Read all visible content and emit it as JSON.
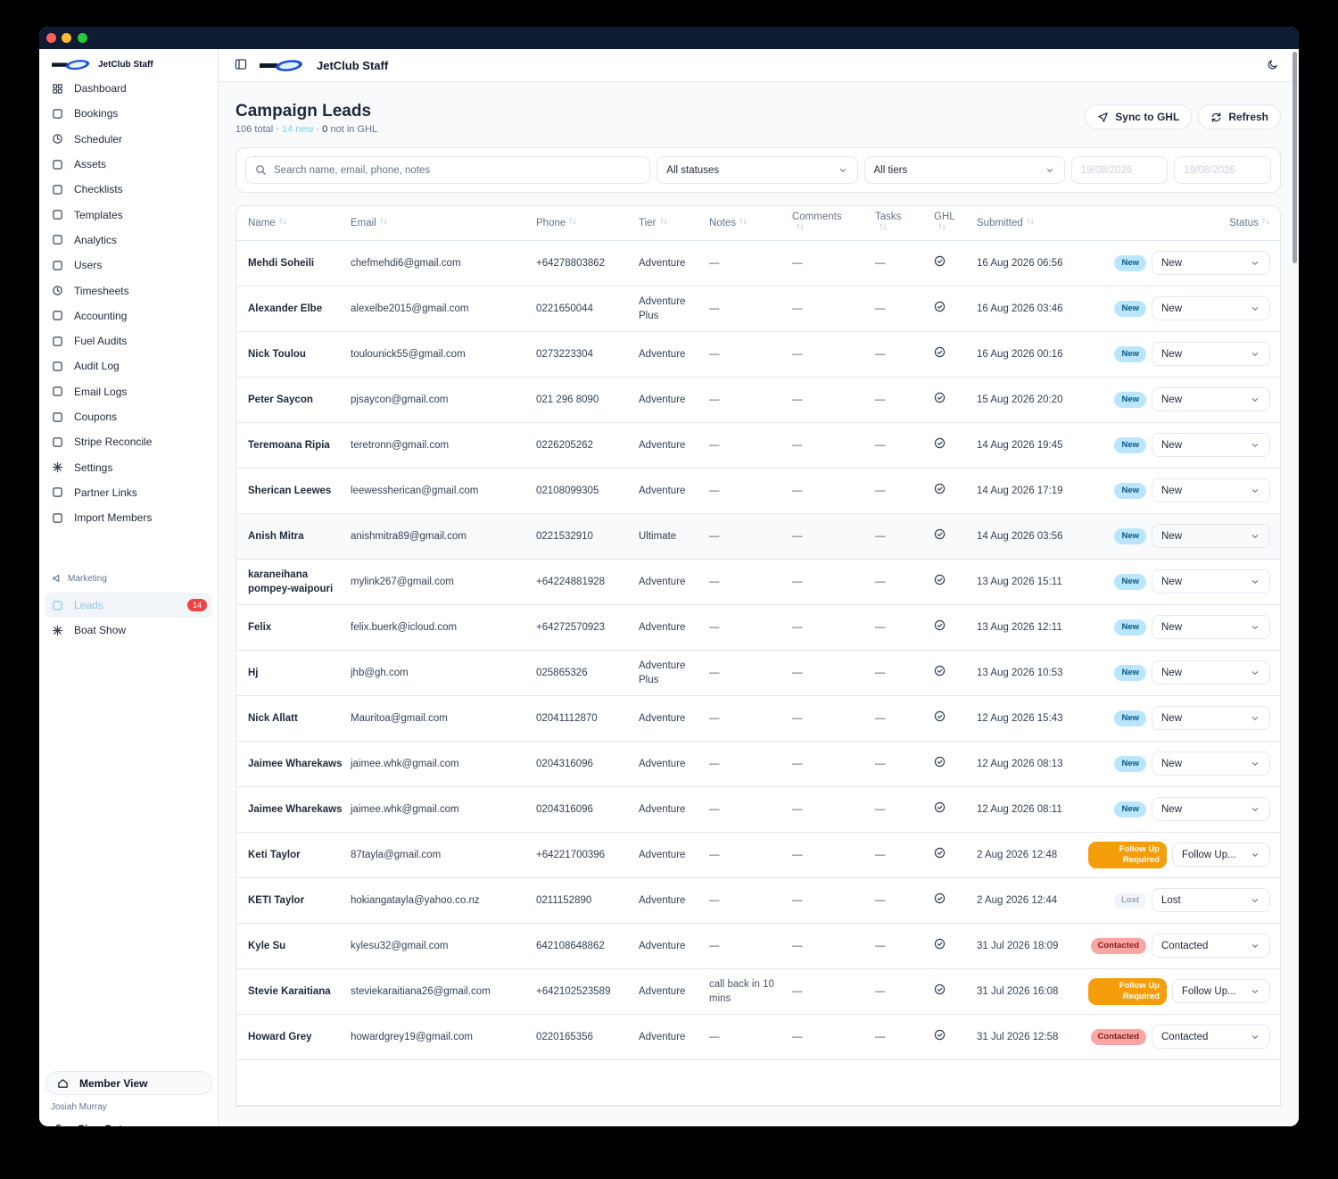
{
  "sidebar": {
    "brand": "JetClub Staff",
    "nav": [
      "Dashboard",
      "Bookings",
      "Scheduler",
      "Assets",
      "Checklists",
      "Templates",
      "Analytics",
      "Users",
      "Timesheets",
      "Accounting",
      "Fuel Audits",
      "Audit Log",
      "Email Logs",
      "Coupons",
      "Stripe Reconcile",
      "Settings",
      "Partner Links",
      "Import Members"
    ],
    "section": "Marketing",
    "marketing": [
      {
        "label": "Leads",
        "badge": "14",
        "active": true
      },
      {
        "label": "Boat Show"
      }
    ],
    "member_view": "Member View",
    "user": "Josiah Murray",
    "sign_out": "Sign Out"
  },
  "topbar": {
    "brand": "JetClub Staff"
  },
  "header": {
    "title": "Campaign Leads",
    "total": "106 total",
    "separator": "·",
    "new": "14 new",
    "ghl_count": "0",
    "ghl_text": "not in GHL",
    "buttons": [
      "Sync to GHL",
      "Refresh"
    ]
  },
  "filters": {
    "search": "Search name, email, phone, notes",
    "status": "All statuses",
    "tier": "All tiers",
    "date_from": "19/08/2026",
    "date_to": "19/08/2026"
  },
  "table": {
    "columns": [
      "Name",
      "Email",
      "Phone",
      "Tier",
      "Notes",
      "Comments",
      "Tasks",
      "GHL",
      "Submitted",
      "Status"
    ],
    "rows": [
      {
        "name": "Mehdi Soheili",
        "email": "chefmehdi6@gmail.com",
        "phone": "+64278803862",
        "tier": "Adventure",
        "notes": "—",
        "comments": "—",
        "tasks": "—",
        "submitted": "16 Aug 2026 06:56",
        "badge": "New",
        "badge_bg": "#bae6fd",
        "badge_fg": "#075985",
        "status": "New"
      },
      {
        "name": "Alexander Elbe",
        "email": "alexelbe2015@gmail.com",
        "phone": "0221650044",
        "tier": "Adventure Plus",
        "notes": "—",
        "comments": "—",
        "tasks": "—",
        "submitted": "16 Aug 2026 03:46",
        "badge": "New",
        "badge_bg": "#bae6fd",
        "badge_fg": "#075985",
        "status": "New"
      },
      {
        "name": "Nick Toulou",
        "email": "toulounick55@gmail.com",
        "phone": "0273223304",
        "tier": "Adventure",
        "notes": "—",
        "comments": "—",
        "tasks": "—",
        "submitted": "16 Aug 2026 00:16",
        "badge": "New",
        "badge_bg": "#bae6fd",
        "badge_fg": "#075985",
        "status": "New"
      },
      {
        "name": "Peter Saycon",
        "email": "pjsaycon@gmail.com",
        "phone": "021 296 8090",
        "tier": "Adventure",
        "notes": "—",
        "comments": "—",
        "tasks": "—",
        "submitted": "15 Aug 2026 20:20",
        "badge": "New",
        "badge_bg": "#bae6fd",
        "badge_fg": "#075985",
        "status": "New"
      },
      {
        "name": "Teremoana Ripia",
        "email": "teretronn@gmail.com",
        "phone": "0226205262",
        "tier": "Adventure",
        "notes": "—",
        "comments": "—",
        "tasks": "—",
        "submitted": "14 Aug 2026 19:45",
        "badge": "New",
        "badge_bg": "#bae6fd",
        "badge_fg": "#075985",
        "status": "New"
      },
      {
        "name": "Sherican Leewes",
        "email": "leewessherican@gmail.com",
        "phone": "02108099305",
        "tier": "Adventure",
        "notes": "—",
        "comments": "—",
        "tasks": "—",
        "submitted": "14 Aug 2026 17:19",
        "badge": "New",
        "badge_bg": "#bae6fd",
        "badge_fg": "#075985",
        "status": "New"
      },
      {
        "name": "Anish Mitra",
        "email": "anishmitra89@gmail.com",
        "phone": "0221532910",
        "tier": "Ultimate",
        "notes": "—",
        "comments": "—",
        "tasks": "—",
        "submitted": "14 Aug 2026 03:56",
        "badge": "New",
        "badge_bg": "#bae6fd",
        "badge_fg": "#075985",
        "status": "New",
        "highlight": true
      },
      {
        "name": "karaneihana pompey-waipouri",
        "email": "mylink267@gmail.com",
        "phone": "+64224881928",
        "tier": "Adventure",
        "notes": "—",
        "comments": "—",
        "tasks": "—",
        "submitted": "13 Aug 2026 15:11",
        "badge": "New",
        "badge_bg": "#bae6fd",
        "badge_fg": "#075985",
        "status": "New"
      },
      {
        "name": "Felix",
        "email": "felix.buerk@icloud.com",
        "phone": "+64272570923",
        "tier": "Adventure",
        "notes": "—",
        "comments": "—",
        "tasks": "—",
        "submitted": "13 Aug 2026 12:11",
        "badge": "New",
        "badge_bg": "#bae6fd",
        "badge_fg": "#075985",
        "status": "New"
      },
      {
        "name": "Hj",
        "email": "jhb@gh.com",
        "phone": "025865326",
        "tier": "Adventure Plus",
        "notes": "—",
        "comments": "—",
        "tasks": "—",
        "submitted": "13 Aug 2026 10:53",
        "badge": "New",
        "badge_bg": "#bae6fd",
        "badge_fg": "#075985",
        "status": "New"
      },
      {
        "name": "Nick Allatt",
        "email": "Mauritoa@gmail.com",
        "phone": "02041112870",
        "tier": "Adventure",
        "notes": "—",
        "comments": "—",
        "tasks": "—",
        "submitted": "12 Aug 2026 15:43",
        "badge": "New",
        "badge_bg": "#bae6fd",
        "badge_fg": "#075985",
        "status": "New"
      },
      {
        "name": "Jaimee Wharekaws",
        "email": "jaimee.whk@gmail.com",
        "phone": "0204316096",
        "tier": "Adventure",
        "notes": "—",
        "comments": "—",
        "tasks": "—",
        "submitted": "12 Aug 2026 08:13",
        "badge": "New",
        "badge_bg": "#bae6fd",
        "badge_fg": "#075985",
        "status": "New"
      },
      {
        "name": "Jaimee Wharekaws",
        "email": "jaimee.whk@gmail.com",
        "phone": "0204316096",
        "tier": "Adventure",
        "notes": "—",
        "comments": "—",
        "tasks": "—",
        "submitted": "12 Aug 2026 08:11",
        "badge": "New",
        "badge_bg": "#bae6fd",
        "badge_fg": "#075985",
        "status": "New"
      },
      {
        "name": "Keti Taylor",
        "email": "87tayla@gmail.com",
        "phone": "+64221700396",
        "tier": "Adventure",
        "notes": "—",
        "comments": "—",
        "tasks": "—",
        "submitted": "2 Aug 2026 12:48",
        "badge": "Follow Up Required",
        "badge_bg": "#f59e0b",
        "badge_fg": "#ffffff",
        "status": "Follow Up..."
      },
      {
        "name": "KETI Taylor",
        "email": "hokiangatayla@yahoo.co.nz",
        "phone": "0211152890",
        "tier": "Adventure",
        "notes": "—",
        "comments": "—",
        "tasks": "—",
        "submitted": "2 Aug 2026 12:44",
        "badge": "Lost",
        "badge_bg": "#f1f5f9",
        "badge_fg": "#94a3b8",
        "status": "Lost"
      },
      {
        "name": "Kyle Su",
        "email": "kylesu32@gmail.com",
        "phone": "642108648862",
        "tier": "Adventure",
        "notes": "—",
        "comments": "—",
        "tasks": "—",
        "submitted": "31 Jul 2026 18:09",
        "badge": "Contacted",
        "badge_bg": "#fca5a5",
        "badge_fg": "#7f1d1d",
        "status": "Contacted"
      },
      {
        "name": "Stevie Karaitiana",
        "email": "steviekaraitiana26@gmail.com",
        "phone": "+642102523589",
        "tier": "Adventure",
        "notes": "call back in 10 mins",
        "comments": "—",
        "tasks": "—",
        "submitted": "31 Jul 2026 16:08",
        "badge": "Follow Up Required",
        "badge_bg": "#f59e0b",
        "badge_fg": "#ffffff",
        "status": "Follow Up..."
      },
      {
        "name": "Howard Grey",
        "email": "howardgrey19@gmail.com",
        "phone": "0220165356",
        "tier": "Adventure",
        "notes": "—",
        "comments": "—",
        "tasks": "—",
        "submitted": "31 Jul 2026 12:58",
        "badge": "Contacted",
        "badge_bg": "#fca5a5",
        "badge_fg": "#7f1d1d",
        "status": "Contacted"
      }
    ]
  }
}
